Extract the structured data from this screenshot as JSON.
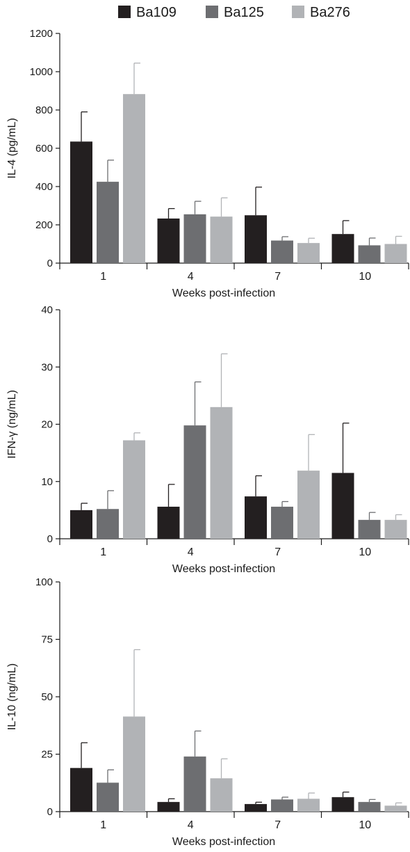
{
  "legend": [
    {
      "label": "Ba109",
      "color": "#231f20"
    },
    {
      "label": "Ba125",
      "color": "#6d6e71"
    },
    {
      "label": "Ba276",
      "color": "#b1b3b6"
    }
  ],
  "chart_data": [
    {
      "type": "bar",
      "ylabel": "IL-4 (pg/mL)",
      "xlabel": "Weeks post-infection",
      "categories": [
        "1",
        "4",
        "7",
        "10"
      ],
      "ylim": [
        0,
        1200
      ],
      "yticks": [
        0,
        200,
        400,
        600,
        800,
        1000,
        1200
      ],
      "series": [
        {
          "name": "Ba109",
          "color": "#231f20",
          "values": [
            635,
            233,
            250,
            152
          ],
          "errors": [
            155,
            52,
            147,
            70
          ]
        },
        {
          "name": "Ba125",
          "color": "#6d6e71",
          "values": [
            425,
            255,
            118,
            93
          ],
          "errors": [
            113,
            68,
            20,
            38
          ]
        },
        {
          "name": "Ba276",
          "color": "#b1b3b6",
          "values": [
            883,
            243,
            105,
            100
          ],
          "errors": [
            162,
            98,
            25,
            40
          ]
        }
      ]
    },
    {
      "type": "bar",
      "ylabel": "IFN-γ (ng/mL)",
      "xlabel": "Weeks post-infection",
      "categories": [
        "1",
        "4",
        "7",
        "10"
      ],
      "ylim": [
        0,
        40
      ],
      "yticks": [
        0,
        10,
        20,
        30,
        40
      ],
      "series": [
        {
          "name": "Ba109",
          "color": "#231f20",
          "values": [
            5.0,
            5.6,
            7.4,
            11.5
          ],
          "errors": [
            1.2,
            3.9,
            3.6,
            8.7
          ]
        },
        {
          "name": "Ba125",
          "color": "#6d6e71",
          "values": [
            5.2,
            19.8,
            5.6,
            3.3
          ],
          "errors": [
            3.2,
            7.6,
            0.9,
            1.3
          ]
        },
        {
          "name": "Ba276",
          "color": "#b1b3b6",
          "values": [
            17.2,
            23.0,
            11.9,
            3.3
          ],
          "errors": [
            1.3,
            9.3,
            6.3,
            0.9
          ]
        }
      ]
    },
    {
      "type": "bar",
      "ylabel": "IL-10 (ng/mL)",
      "xlabel": "Weeks post-infection",
      "categories": [
        "1",
        "4",
        "7",
        "10"
      ],
      "ylim": [
        0,
        100
      ],
      "yticks": [
        0,
        25,
        50,
        75,
        100
      ],
      "series": [
        {
          "name": "Ba109",
          "color": "#231f20",
          "values": [
            19.0,
            4.2,
            3.3,
            6.3
          ],
          "errors": [
            11.0,
            1.4,
            0.8,
            2.2
          ]
        },
        {
          "name": "Ba125",
          "color": "#6d6e71",
          "values": [
            12.6,
            24.0,
            5.3,
            4.2
          ],
          "errors": [
            5.6,
            11.1,
            1.0,
            1.1
          ]
        },
        {
          "name": "Ba276",
          "color": "#b1b3b6",
          "values": [
            41.4,
            14.5,
            5.6,
            2.6
          ],
          "errors": [
            29.1,
            8.5,
            2.5,
            1.2
          ]
        }
      ]
    }
  ]
}
